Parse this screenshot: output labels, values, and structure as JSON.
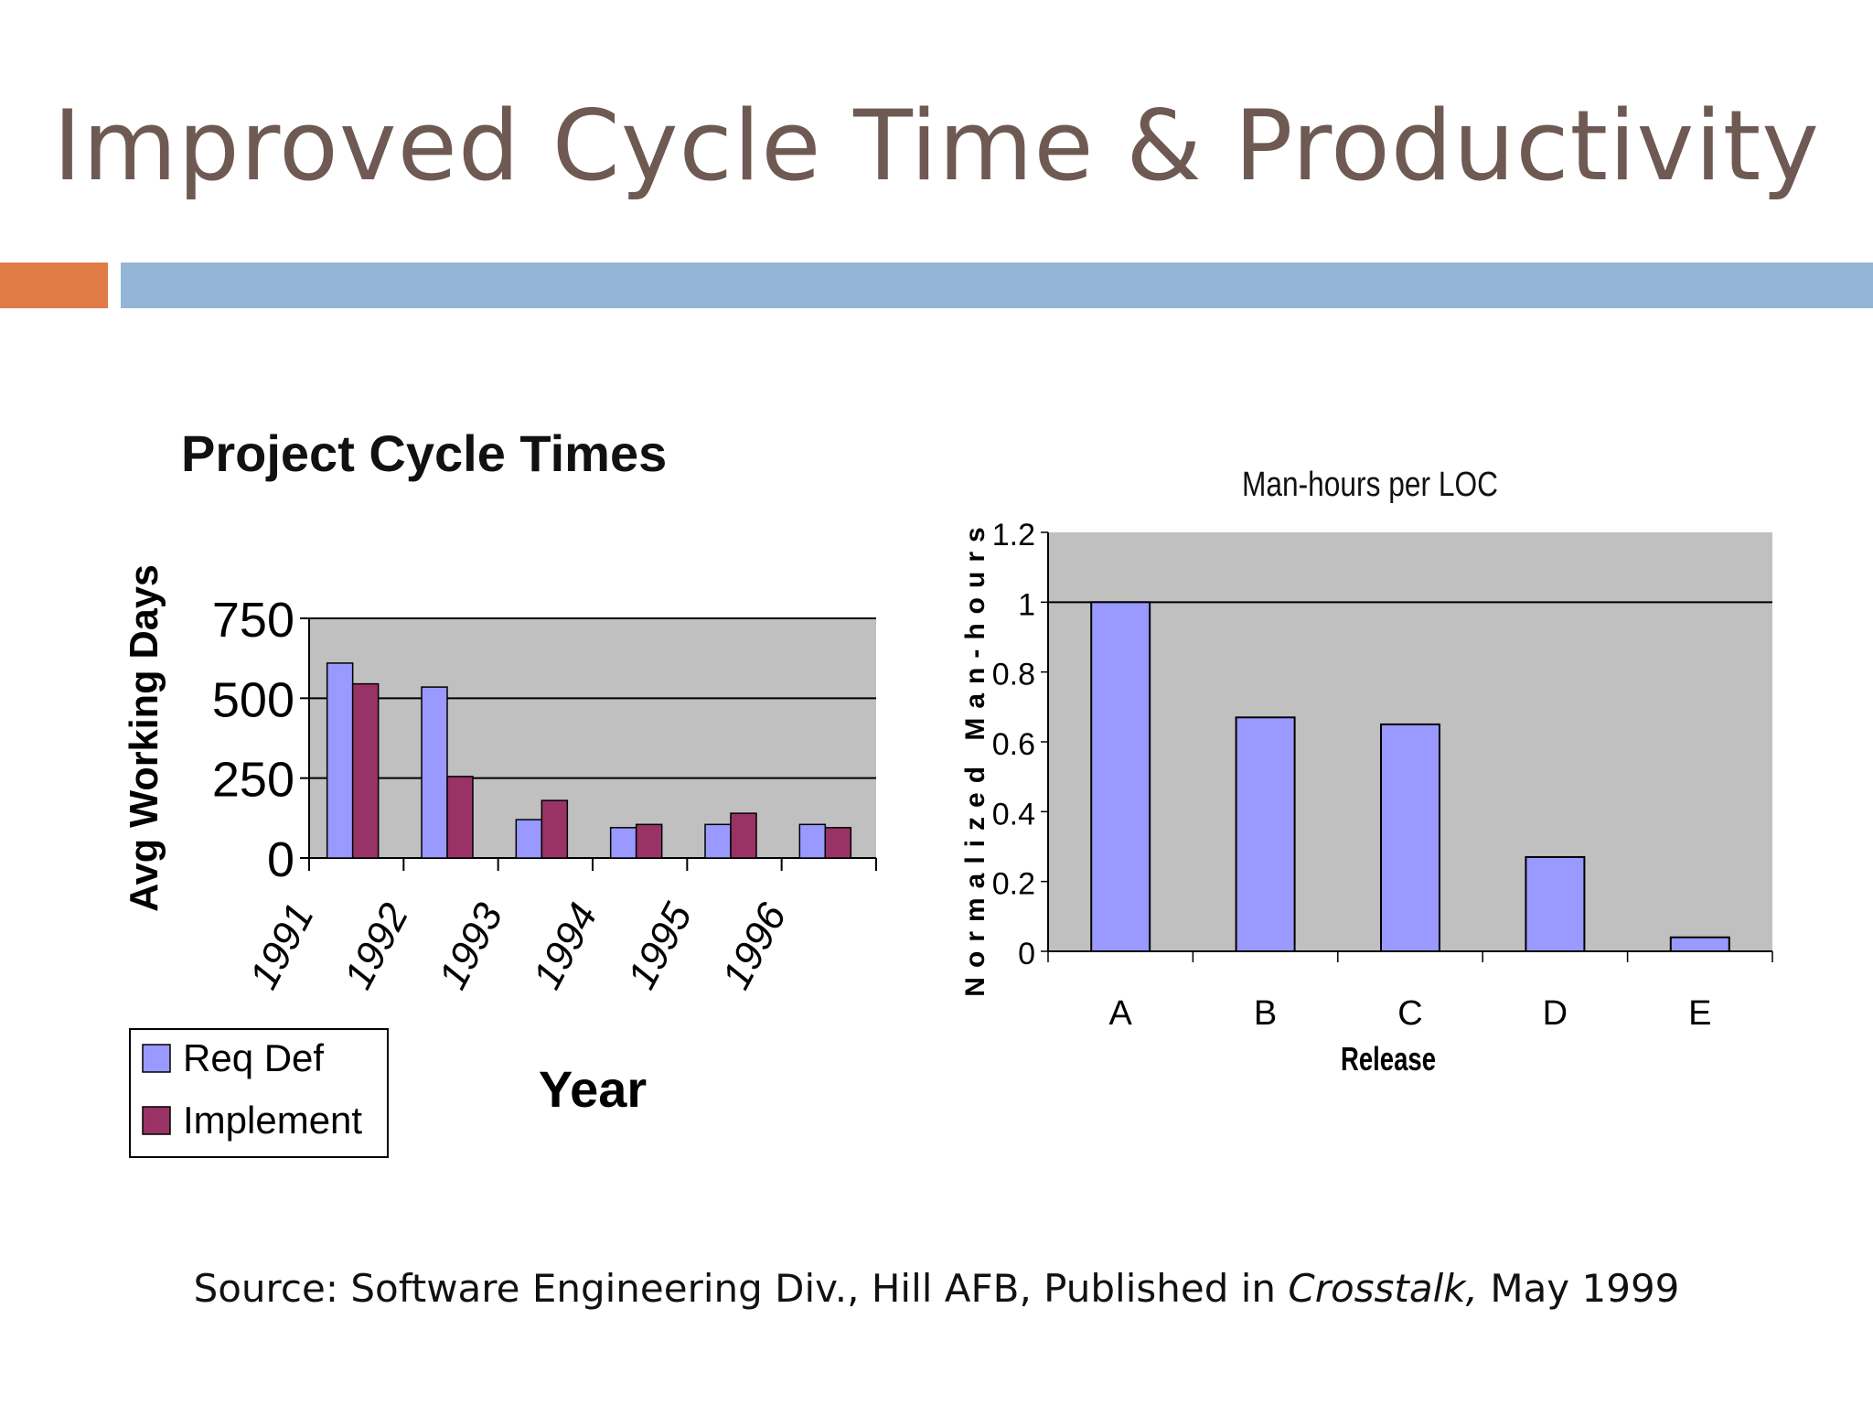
{
  "slide": {
    "title": "Improved Cycle Time & Productivity",
    "source_prefix": "Source: Software Engineering Div., Hill AFB, Published in ",
    "source_italic": "Crosstalk,",
    "source_suffix": " May 1999"
  },
  "colors": {
    "title": "#6e5a52",
    "accent_orange": "#e07b45",
    "accent_blue": "#93b5d5",
    "plot_bg": "#c0c0c0",
    "bar_primary": "#9999ff",
    "bar_secondary": "#993366"
  },
  "chart_data": [
    {
      "type": "bar",
      "title": "Project Cycle Times",
      "xlabel": "Year",
      "ylabel": "Avg Working Days",
      "categories": [
        "1991",
        "1992",
        "1993",
        "1994",
        "1995",
        "1996"
      ],
      "series": [
        {
          "name": "Req Def",
          "values": [
            610,
            535,
            120,
            95,
            105,
            105
          ]
        },
        {
          "name": "Implement",
          "values": [
            545,
            255,
            180,
            105,
            140,
            95
          ]
        }
      ],
      "ylim": [
        0,
        750
      ],
      "yticks": [
        0,
        250,
        500,
        750
      ],
      "grid": true,
      "legend": "bottom-left"
    },
    {
      "type": "bar",
      "title": "Man-hours per LOC",
      "xlabel": "Release",
      "ylabel": "Normalized Man-hours",
      "categories": [
        "A",
        "B",
        "C",
        "D",
        "E"
      ],
      "series": [
        {
          "values": [
            1.0,
            0.67,
            0.65,
            0.27,
            0.04
          ]
        }
      ],
      "ylim": [
        0,
        1.2
      ],
      "yticks": [
        "0",
        "0.2",
        "0.4",
        "0.6",
        "0.8",
        "1",
        "1.2"
      ],
      "grid": true
    }
  ]
}
